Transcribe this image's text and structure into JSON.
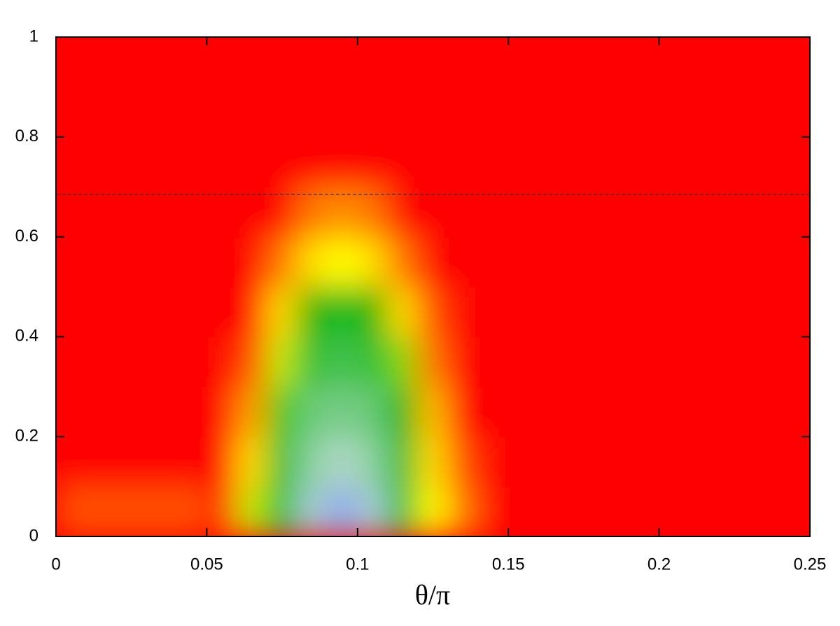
{
  "chart_data": {
    "type": "heatmap",
    "x_label": "θ/π",
    "x": [
      0.005,
      0.015,
      0.025,
      0.035,
      0.045,
      0.055,
      0.065,
      0.075,
      0.085,
      0.095,
      0.105,
      0.115,
      0.125,
      0.135,
      0.145,
      0.155,
      0.165,
      0.175,
      0.185,
      0.195,
      0.205,
      0.215,
      0.225,
      0.235,
      0.245
    ],
    "y": [
      0.05,
      0.15,
      0.25,
      0.35,
      0.45,
      0.55,
      0.65,
      0.75,
      0.85,
      0.95
    ],
    "z": [
      [
        0.1,
        0.1,
        0.1,
        0.1,
        0.1,
        0.05,
        0.4,
        0.6,
        0.85,
        1,
        0.85,
        0.6,
        0.35,
        0.15,
        0,
        0,
        0,
        0,
        0,
        0,
        0,
        0,
        0,
        0,
        0
      ],
      [
        0,
        0,
        0,
        0,
        0,
        0,
        0.3,
        0.6,
        0.75,
        0.8,
        0.75,
        0.6,
        0.3,
        0.1,
        0,
        0,
        0,
        0,
        0,
        0,
        0,
        0,
        0,
        0,
        0
      ],
      [
        0,
        0,
        0,
        0,
        0,
        0,
        0.2,
        0.5,
        0.7,
        0.72,
        0.7,
        0.55,
        0.25,
        0,
        0,
        0,
        0,
        0,
        0,
        0,
        0,
        0,
        0,
        0,
        0
      ],
      [
        0,
        0,
        0,
        0,
        0,
        0,
        0.1,
        0.4,
        0.62,
        0.65,
        0.62,
        0.45,
        0.15,
        0,
        0,
        0,
        0,
        0,
        0,
        0,
        0,
        0,
        0,
        0,
        0
      ],
      [
        0,
        0,
        0,
        0,
        0,
        0,
        0,
        0.3,
        0.55,
        0.6,
        0.55,
        0.3,
        0.1,
        0,
        0,
        0,
        0,
        0,
        0,
        0,
        0,
        0,
        0,
        0,
        0
      ],
      [
        0,
        0,
        0,
        0,
        0,
        0,
        0,
        0.15,
        0.3,
        0.35,
        0.3,
        0.15,
        0,
        0,
        0,
        0,
        0,
        0,
        0,
        0,
        0,
        0,
        0,
        0,
        0
      ],
      [
        0,
        0,
        0,
        0,
        0,
        0,
        0,
        0,
        0.15,
        0.18,
        0.15,
        0,
        0,
        0,
        0,
        0,
        0,
        0,
        0,
        0,
        0,
        0,
        0,
        0,
        0
      ],
      [
        0,
        0,
        0,
        0,
        0,
        0,
        0,
        0,
        0,
        0,
        0,
        0,
        0,
        0,
        0,
        0,
        0,
        0,
        0,
        0,
        0,
        0,
        0,
        0,
        0
      ],
      [
        0,
        0,
        0,
        0,
        0,
        0,
        0,
        0,
        0,
        0,
        0,
        0,
        0,
        0,
        0,
        0,
        0,
        0,
        0,
        0,
        0,
        0,
        0,
        0,
        0
      ],
      [
        0,
        0,
        0,
        0,
        0,
        0,
        0,
        0,
        0,
        0,
        0,
        0,
        0,
        0,
        0,
        0,
        0,
        0,
        0,
        0,
        0,
        0,
        0,
        0,
        0
      ]
    ],
    "colorscale": [
      [
        0,
        "#ff0000"
      ],
      [
        0.2,
        "#ffa000"
      ],
      [
        0.35,
        "#ffff00"
      ],
      [
        0.55,
        "#00b400"
      ],
      [
        0.8,
        "#b0d8c8"
      ],
      [
        1,
        "#8fa8ee"
      ]
    ],
    "xlim": [
      0,
      0.25
    ],
    "xticks": [
      0,
      0.05,
      0.1,
      0.15,
      0.2,
      0.25
    ],
    "ylim": [
      0,
      1
    ],
    "yticks": [
      0,
      0.2,
      0.4,
      0.6,
      0.8,
      1
    ],
    "hlines": [
      {
        "y": 0.685,
        "style": "dashed",
        "color": "#333333"
      }
    ]
  }
}
